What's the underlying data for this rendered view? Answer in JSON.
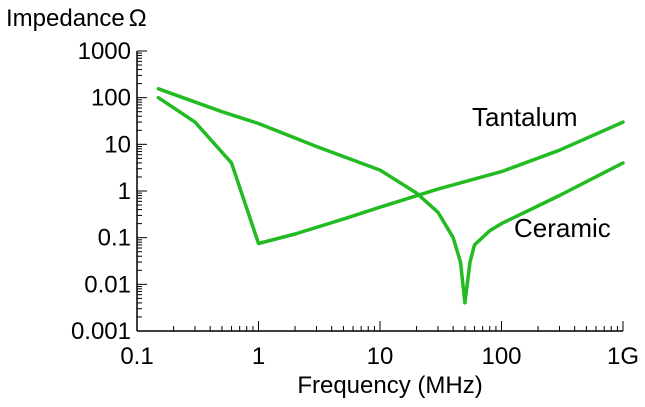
{
  "chart_data": {
    "type": "line",
    "title": "",
    "ylabel": "Impedance",
    "ylabel_unit": "Ω",
    "xlabel": "Frequency (MHz)",
    "x_scale": "log",
    "y_scale": "log",
    "xlim": [
      0.1,
      1000
    ],
    "ylim": [
      0.001,
      1000
    ],
    "x_ticks": [
      0.1,
      1,
      10,
      100,
      1000
    ],
    "x_tick_labels": [
      "0.1",
      "1",
      "10",
      "100",
      "1G"
    ],
    "y_ticks": [
      0.001,
      0.01,
      0.1,
      1,
      10,
      100,
      1000
    ],
    "y_tick_labels": [
      "0.001",
      "0.01",
      "0.1",
      "1",
      "10",
      "100",
      "1000"
    ],
    "grid": false,
    "legend": "none",
    "line_color": "#22bb22",
    "series": [
      {
        "name": "Tantalum",
        "x": [
          0.15,
          0.3,
          0.6,
          1.0,
          2.0,
          5.0,
          10,
          30,
          100,
          300,
          1000
        ],
        "y": [
          100,
          30,
          4,
          0.075,
          0.12,
          0.25,
          0.45,
          1.1,
          2.6,
          7.5,
          30
        ]
      },
      {
        "name": "Ceramic",
        "x": [
          0.15,
          0.5,
          1.0,
          3.0,
          10,
          20,
          30,
          40,
          46,
          50,
          55,
          60,
          80,
          100,
          300,
          1000
        ],
        "y": [
          155,
          50,
          28,
          9,
          2.8,
          0.9,
          0.35,
          0.1,
          0.03,
          0.004,
          0.03,
          0.07,
          0.14,
          0.2,
          0.8,
          4
        ]
      }
    ]
  }
}
